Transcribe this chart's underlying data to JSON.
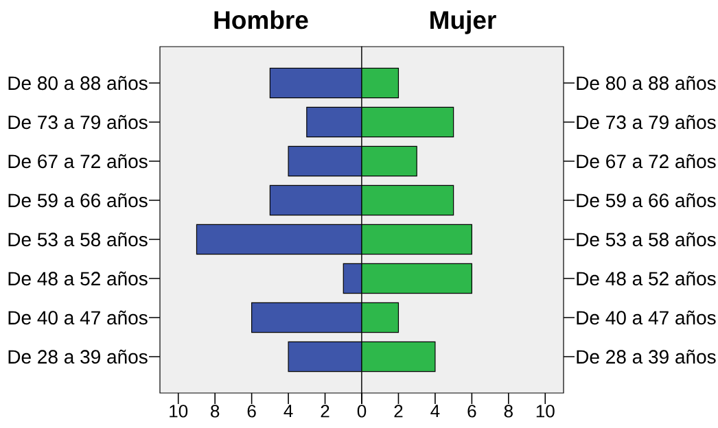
{
  "chart_data": [
    {
      "type": "bar",
      "orientation": "horizontal",
      "title": "Hombre",
      "categories": [
        "De 80 a 88 años",
        "De 73 a 79 años",
        "De 67 a 72 años",
        "De 59 a 66 años",
        "De 53 a 58 años",
        "De 48 a 52 años",
        "De 40 a 47 años",
        "De 28 a 39 años"
      ],
      "values": [
        5,
        3,
        4,
        5,
        9,
        1,
        6,
        4
      ],
      "color": "#3e56aa",
      "xlim": [
        11,
        0
      ],
      "xticks": [
        10,
        8,
        6,
        4,
        2,
        {
          "value": 0,
          "label": null
        }
      ]
    },
    {
      "type": "bar",
      "orientation": "horizontal",
      "title": "Mujer",
      "categories": [
        "De 80 a 88 años",
        "De 73 a 79 años",
        "De 67 a 72 años",
        "De 59 a 66 años",
        "De 53 a 58 años",
        "De 48 a 52 años",
        "De 40 a 47 años",
        "De 28 a 39 años"
      ],
      "values": [
        2,
        5,
        3,
        5,
        6,
        6,
        2,
        4
      ],
      "color": "#2eb84b",
      "xlim": [
        0,
        11
      ],
      "xticks": [
        0,
        2,
        4,
        6,
        8,
        10
      ]
    }
  ]
}
